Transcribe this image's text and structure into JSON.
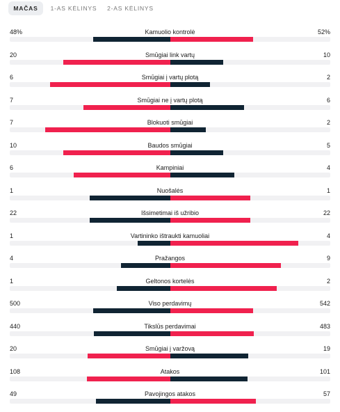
{
  "tabs": [
    {
      "label": "MAČAS",
      "active": true
    },
    {
      "label": "1-AS KĖLINYS",
      "active": false
    },
    {
      "label": "2-AS KĖLINYS",
      "active": false
    }
  ],
  "colors": {
    "dark": "#102433",
    "red": "#f0214e",
    "track": "#f1f1f3"
  },
  "stats": [
    {
      "label": "Kamuolio kontrolė",
      "left": "48%",
      "right": "52%",
      "lnum": 48,
      "rnum": 52
    },
    {
      "label": "Smūgiai link vartų",
      "left": "20",
      "right": "10",
      "lnum": 20,
      "rnum": 10
    },
    {
      "label": "Smūgiai į vartų plotą",
      "left": "6",
      "right": "2",
      "lnum": 6,
      "rnum": 2
    },
    {
      "label": "Smūgiai ne į vartų plotą",
      "left": "7",
      "right": "6",
      "lnum": 7,
      "rnum": 6
    },
    {
      "label": "Blokuoti smūgiai",
      "left": "7",
      "right": "2",
      "lnum": 7,
      "rnum": 2
    },
    {
      "label": "Baudos smūgiai",
      "left": "10",
      "right": "5",
      "lnum": 10,
      "rnum": 5
    },
    {
      "label": "Kampiniai",
      "left": "6",
      "right": "4",
      "lnum": 6,
      "rnum": 4
    },
    {
      "label": "Nuošalės",
      "left": "1",
      "right": "1",
      "lnum": 1,
      "rnum": 1
    },
    {
      "label": "Išsimetimai iš užribio",
      "left": "22",
      "right": "22",
      "lnum": 22,
      "rnum": 22
    },
    {
      "label": "Vartininko ištraukti kamuoliai",
      "left": "1",
      "right": "4",
      "lnum": 1,
      "rnum": 4
    },
    {
      "label": "Pražangos",
      "left": "4",
      "right": "9",
      "lnum": 4,
      "rnum": 9
    },
    {
      "label": "Geltonos kortelės",
      "left": "1",
      "right": "2",
      "lnum": 1,
      "rnum": 2
    },
    {
      "label": "Viso perdavimų",
      "left": "500",
      "right": "542",
      "lnum": 500,
      "rnum": 542
    },
    {
      "label": "Tikslūs perdavimai",
      "left": "440",
      "right": "483",
      "lnum": 440,
      "rnum": 483
    },
    {
      "label": "Smūgiai į varžovą",
      "left": "20",
      "right": "19",
      "lnum": 20,
      "rnum": 19
    },
    {
      "label": "Atakos",
      "left": "108",
      "right": "101",
      "lnum": 108,
      "rnum": 101
    },
    {
      "label": "Pavojingos atakos",
      "left": "49",
      "right": "57",
      "lnum": 49,
      "rnum": 57
    }
  ]
}
